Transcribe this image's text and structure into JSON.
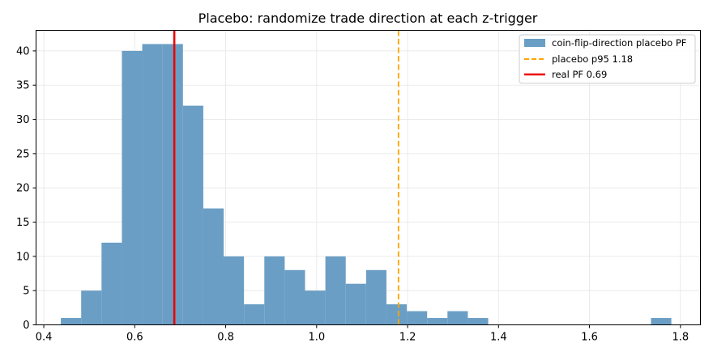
{
  "chart_data": {
    "type": "bar",
    "title": "Placebo: randomize trade direction at each z-trigger",
    "xlabel": "",
    "ylabel": "",
    "xlim": [
      0.383,
      1.844
    ],
    "ylim": [
      0,
      43
    ],
    "xticks": [
      0.4,
      0.6,
      0.8,
      1.0,
      1.2,
      1.4,
      1.6,
      1.8
    ],
    "yticks": [
      0,
      5,
      10,
      15,
      20,
      25,
      30,
      35,
      40
    ],
    "grid": true,
    "legend_position": "top-right",
    "histogram": {
      "name": "coin-flip-direction placebo PF",
      "color": "#6a9ec5",
      "bin_start": 0.4375,
      "bin_width": 0.04475,
      "counts": [
        1,
        5,
        12,
        40,
        41,
        41,
        32,
        17,
        10,
        3,
        10,
        8,
        5,
        10,
        6,
        8,
        3,
        2,
        1,
        2,
        1,
        0,
        0,
        0,
        0,
        0,
        0,
        0,
        0,
        1
      ]
    },
    "lines": [
      {
        "name": "placebo p95 1.18",
        "x": 1.18,
        "color": "#ffa500",
        "style": "dashed"
      },
      {
        "name": "real PF 0.69",
        "x": 0.687,
        "color": "#ee0000",
        "style": "solid"
      }
    ]
  }
}
